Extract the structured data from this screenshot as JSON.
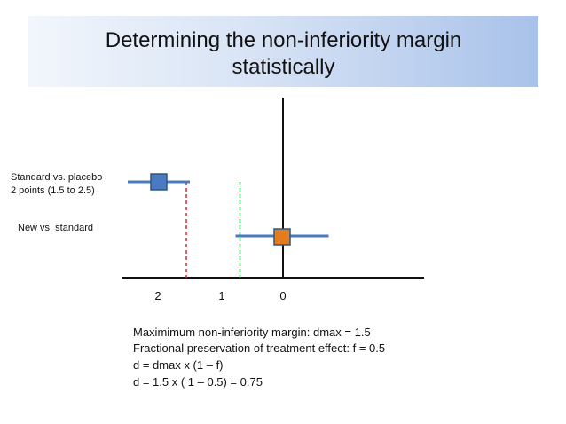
{
  "title": {
    "line1": "Determining the non-inferiority margin",
    "line2": "statistically"
  },
  "rows": {
    "standard_vs_placebo": {
      "label_line1": "Standard vs. placebo",
      "label_line2": "2 points  (1.5 to 2.5)",
      "estimate": 2,
      "ci": [
        1.5,
        2.5
      ],
      "marker_color": "#4a7abf"
    },
    "new_vs_standard": {
      "label": "New vs. standard",
      "estimate": 0,
      "ci": [
        -0.75,
        0.75
      ],
      "marker_color": "#e57b1f"
    }
  },
  "axis": {
    "ticks": [
      "2",
      "1",
      "0"
    ]
  },
  "reference_lines": {
    "dmax": {
      "value": 1.5,
      "color": "#d9302b"
    },
    "d": {
      "value": 0.75,
      "color": "#2aa84a"
    }
  },
  "formulas": [
    "Maximimum non-inferiority margin:  dmax = 1.5",
    "Fractional preservation of treatment effect:  f = 0.5",
    "d = dmax x (1 – f)",
    "d = 1.5 x ( 1 – 0.5) = 0.75"
  ],
  "colors": {
    "ci_line": "#4a7abf",
    "axis": "#111111"
  }
}
